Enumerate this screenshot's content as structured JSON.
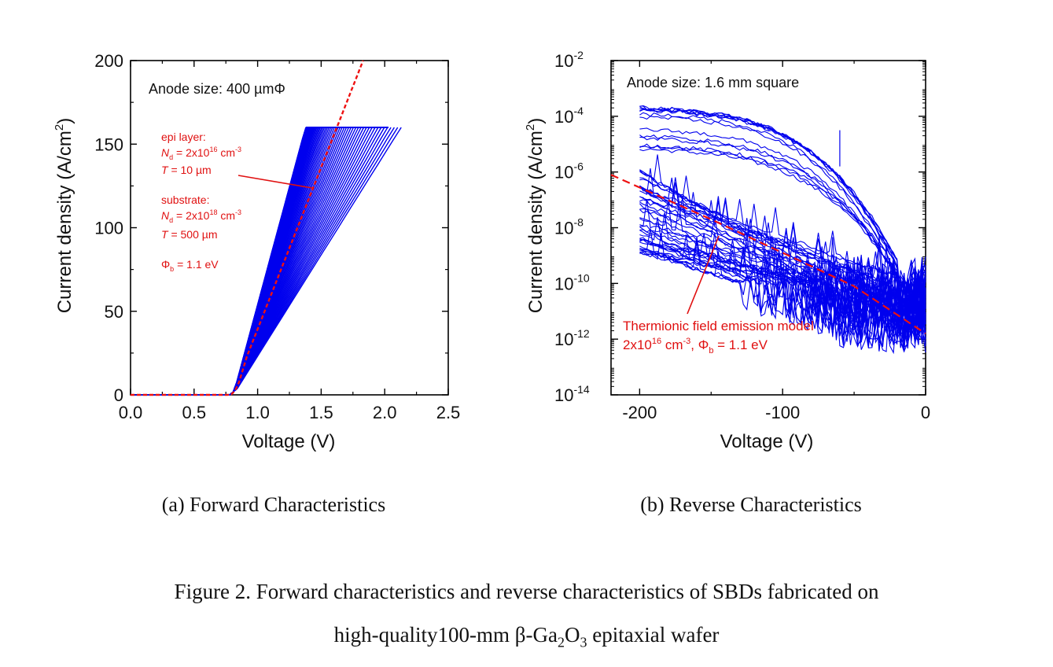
{
  "colors": {
    "curves": "#0000ee",
    "model": "#ee1111",
    "text": "#111111"
  },
  "chart_data": [
    {
      "type": "line",
      "panel_caption": "(a) Forward Characteristics",
      "xlabel": "Voltage (V)",
      "ylabel_main": "Current density (A/cm",
      "ylabel_sup": "2",
      "ylabel_end": ")",
      "xlim": [
        0.0,
        2.5
      ],
      "ylim": [
        0,
        200
      ],
      "xticks": [
        "0.0",
        "0.5",
        "1.0",
        "1.5",
        "2.0",
        "2.5"
      ],
      "yticks": [
        "0",
        "50",
        "100",
        "150",
        "200"
      ],
      "annotation": "Anode size: 400 µmΦ",
      "model_label_lines": {
        "epi_title": "epi layer:",
        "epi_nd_sym": "N",
        "epi_nd_sub": "d",
        "epi_nd_val": " = 2x10",
        "epi_nd_exp": "16",
        "epi_nd_unit": " cm",
        "epi_nd_unit_exp": "-3",
        "epi_t_sym": "T",
        "epi_t_val": " = 10 µm",
        "sub_title": "substrate:",
        "sub_nd_sym": "N",
        "sub_nd_sub": "d",
        "sub_nd_val": " = 2x10",
        "sub_nd_exp": "18",
        "sub_nd_unit": " cm",
        "sub_nd_unit_exp": "-3",
        "sub_t_sym": "T",
        "sub_t_val": " = 500 µm",
        "phi_sym": "Φ",
        "phi_sub": "b",
        "phi_val": " = 1.1 eV"
      },
      "series_description": {
        "measured": {
          "turn_on_V": 0.78,
          "compliance_Jmax": 160,
          "V_at_compliance_min": 1.38,
          "V_at_compliance_max": 2.13,
          "count": 60
        },
        "model": {
          "turn_on_V": 0.78,
          "x": [
            0.0,
            0.7,
            0.78,
            0.9,
            1.2,
            1.5,
            1.83
          ],
          "y": [
            0,
            0,
            2,
            20,
            80,
            145,
            200
          ]
        }
      }
    },
    {
      "type": "line",
      "panel_caption": "(b) Reverse Characteristics",
      "xlabel": "Voltage (V)",
      "ylabel_main": "Current density (A/cm",
      "ylabel_sup": "2",
      "ylabel_end": ")",
      "yscale": "log",
      "xlim": [
        -220,
        0
      ],
      "ylim_exp": [
        -14,
        -2
      ],
      "xticks": [
        "-200",
        "-100",
        "0"
      ],
      "yticks_exp": [
        "-2",
        "-4",
        "-6",
        "-8",
        "-10",
        "-12",
        "-14"
      ],
      "ytick_base": "10",
      "annotation": "Anode size: 1.6 mm square",
      "model_label_line1": "Thermionic field emission model",
      "model_label_line2_a": "2x10",
      "model_label_line2_exp": "16",
      "model_label_line2_b": " cm",
      "model_label_line2_exp2": "-3",
      "model_label_line2_c": ", Φ",
      "model_label_line2_sub": "b",
      "model_label_line2_d": " = 1.1 eV",
      "series_description": {
        "measured": {
          "V_start": -200,
          "log10J_at_start_min": -9.0,
          "log10J_at_start_max": -3.6,
          "count": 55
        },
        "model": {
          "x": [
            -220,
            -150,
            -100,
            -50,
            0
          ],
          "log10_y": [
            -6.1,
            -7.7,
            -8.9,
            -10.1,
            -11.8
          ]
        }
      }
    }
  ],
  "captions": {
    "a": "(a) Forward Characteristics",
    "b": "(b) Reverse Characteristics",
    "figure_line1": "Figure 2.   Forward characteristics and reverse characteristics of SBDs fabricated on",
    "figure_line2_a": "high-quality100-mm β-Ga",
    "figure_line2_sub1": "2",
    "figure_line2_b": "O",
    "figure_line2_sub2": "3",
    "figure_line2_c": " epitaxial wafer"
  }
}
